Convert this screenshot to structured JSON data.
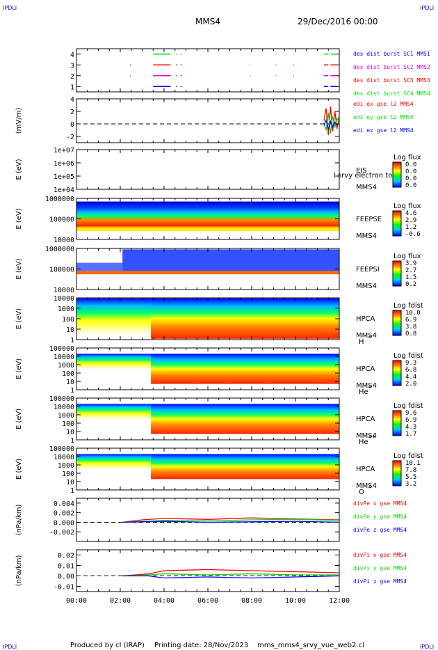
{
  "header": {
    "corner_label": "IPDLI",
    "spacecraft": "MMS4",
    "date": "29/Dec/2016 00:00"
  },
  "footer": {
    "produced_by": "Produced by cl (IRAP)",
    "printing_date": "Printing date: 28/Nov/2023",
    "filename": "mms_mms4_srvy_vue_web2.cl"
  },
  "colors": {
    "red": "#ff0000",
    "green": "#00dd00",
    "blue": "#0000ff",
    "magenta": "#dd00dd",
    "black": "#000000"
  },
  "chart_data": [
    {
      "type": "line",
      "panel": "burst",
      "ylabel": "",
      "ylim": [
        0.5,
        4.5
      ],
      "yticks": [
        "1",
        "2",
        "3",
        "4"
      ],
      "series": [
        {
          "name": "des dist burst SC1 MMS1",
          "color": "#0000ff",
          "y": 1,
          "intervals": [
            [
              3.5,
              4.3
            ],
            [
              4.55,
              4.6
            ],
            [
              4.75,
              4.8
            ],
            [
              11.3,
              11.5
            ],
            [
              11.6,
              11.9
            ]
          ]
        },
        {
          "name": "des dist burst SC2 MMS2",
          "color": "#dd00dd",
          "y": 2,
          "intervals": [
            [
              2.45,
              2.48
            ],
            [
              3.5,
              4.3
            ],
            [
              4.55,
              4.6
            ],
            [
              4.75,
              4.8
            ],
            [
              7.9,
              7.93
            ],
            [
              9.1,
              9.13
            ],
            [
              9.9,
              9.93
            ],
            [
              11.3,
              11.5
            ],
            [
              11.6,
              11.9
            ]
          ]
        },
        {
          "name": "des dist burst SC3 MMS3",
          "color": "#ff0000",
          "y": 3,
          "intervals": [
            [
              2.45,
              2.48
            ],
            [
              3.5,
              4.3
            ],
            [
              4.55,
              4.6
            ],
            [
              4.75,
              4.8
            ],
            [
              7.9,
              7.93
            ],
            [
              9.1,
              9.13
            ],
            [
              9.9,
              9.93
            ],
            [
              11.3,
              11.5
            ],
            [
              11.6,
              11.9
            ]
          ]
        },
        {
          "name": "des dist burst SC4 MMS4",
          "color": "#00dd00",
          "y": 4,
          "intervals": [
            [
              3.5,
              4.3
            ],
            [
              4.55,
              4.6
            ],
            [
              4.75,
              4.8
            ],
            [
              7.9,
              7.93
            ],
            [
              9.1,
              9.13
            ],
            [
              9.9,
              9.93
            ],
            [
              11.3,
              11.5
            ],
            [
              11.6,
              11.9
            ]
          ]
        }
      ]
    },
    {
      "type": "line",
      "panel": "edi",
      "ylabel": "(mV/m)",
      "ylim": [
        -3,
        4
      ],
      "yticks": [
        "-2",
        "0",
        "2",
        "4"
      ],
      "series": [
        {
          "name": "edi ex gse l2 MMS4",
          "color": "#ff0000",
          "x": [
            11.3,
            11.4,
            11.5,
            11.6,
            11.7,
            11.8,
            11.9,
            12.0
          ],
          "y": [
            0.5,
            2.5,
            -1.8,
            2.8,
            -1.2,
            2.0,
            -0.8,
            1.5
          ]
        },
        {
          "name": "edi ey gse l2 MMS4",
          "color": "#00dd00",
          "x": [
            11.3,
            11.4,
            11.5,
            11.6,
            11.7,
            11.8,
            11.9,
            12.0
          ],
          "y": [
            0.2,
            -1.0,
            1.8,
            -1.5,
            1.2,
            -0.6,
            0.9,
            0.1
          ]
        },
        {
          "name": "edi ez gse l2 MMS4",
          "color": "#0000ff",
          "x": [
            11.3,
            11.4,
            11.5,
            11.6,
            11.7,
            11.8,
            11.9,
            12.0
          ],
          "y": [
            -0.3,
            0.6,
            -0.9,
            0.4,
            -0.5,
            0.3,
            -0.2,
            0.1
          ]
        }
      ]
    },
    {
      "type": "heatmap",
      "panel": "eis",
      "ylabel": "E (eV)",
      "yscale": "log",
      "ylim": [
        10000,
        10000000
      ],
      "yticks": [
        "1e+04",
        "1e+05",
        "1e+06",
        "1e+07"
      ],
      "instrument": "EIS",
      "spacecraft": "MMS4",
      "overlay_text": "l srvy electron to",
      "colorbar_title": "Log flux",
      "colorbar_ticks": [
        "0.0",
        "0.0",
        "0.0",
        "0.0"
      ]
    },
    {
      "type": "heatmap",
      "panel": "feepse",
      "ylabel": "E (eV)",
      "yscale": "log",
      "ylim": [
        10000,
        1000000
      ],
      "yticks": [
        "10000",
        "100000",
        "1000000"
      ],
      "instrument": "FEEPSE",
      "spacecraft": "MMS4",
      "colorbar_title": "Log flux",
      "colorbar_ticks": [
        "4.6",
        "2.9",
        "1.2",
        "-0.6"
      ]
    },
    {
      "type": "heatmap",
      "panel": "feepsi",
      "ylabel": "E (eV)",
      "yscale": "log",
      "ylim": [
        10000,
        1000000
      ],
      "yticks": [
        "10000",
        "100000",
        "1000000"
      ],
      "instrument": "FEEPSI",
      "spacecraft": "MMS4",
      "colorbar_title": "Log flux",
      "colorbar_ticks": [
        "3.9",
        "2.7",
        "1.5",
        "0.2"
      ]
    },
    {
      "type": "heatmap",
      "panel": "hpca_h",
      "ylabel": "E (eV)",
      "yscale": "log",
      "ylim": [
        1,
        10000
      ],
      "yticks": [
        "1",
        "10",
        "100",
        "1000",
        "10000"
      ],
      "instrument": "HPCA",
      "spacecraft": "MMS4",
      "species": "H",
      "species_charge": "+",
      "colorbar_title": "Log fdist",
      "colorbar_ticks": [
        "10.0",
        "6.9",
        "3.8",
        "0.8"
      ]
    },
    {
      "type": "heatmap",
      "panel": "hpca_he",
      "ylabel": "E (eV)",
      "yscale": "log",
      "ylim": [
        1,
        100000
      ],
      "yticks": [
        "1",
        "10",
        "100",
        "1000",
        "10000",
        "100000"
      ],
      "instrument": "HPCA",
      "spacecraft": "MMS4",
      "species": "He",
      "species_charge": "+",
      "colorbar_title": "Log fdist",
      "colorbar_ticks": [
        "9.3",
        "6.8",
        "4.4",
        "2.0"
      ]
    },
    {
      "type": "heatmap",
      "panel": "hpca_hepp",
      "ylabel": "E (eV)",
      "yscale": "log",
      "ylim": [
        1,
        100000
      ],
      "yticks": [
        "1",
        "10",
        "100",
        "1000",
        "10000",
        "100000"
      ],
      "instrument": "HPCA",
      "spacecraft": "MMS4",
      "species": "He",
      "species_charge": "++",
      "colorbar_title": "Log fdist",
      "colorbar_ticks": [
        "9.6",
        "6.9",
        "4.3",
        "1.7"
      ]
    },
    {
      "type": "heatmap",
      "panel": "hpca_o",
      "ylabel": "E (eV)",
      "yscale": "log",
      "ylim": [
        1,
        100000
      ],
      "yticks": [
        "1",
        "10",
        "100",
        "1000",
        "10000",
        "100000"
      ],
      "instrument": "HPCA",
      "spacecraft": "MMS4",
      "species": "O",
      "species_charge": "+",
      "colorbar_title": "Log fdist",
      "colorbar_ticks": [
        "10.1",
        "7.8",
        "5.5",
        "3.2"
      ]
    },
    {
      "type": "line",
      "panel": "divpe",
      "ylabel": "(nPa/km)",
      "ylim": [
        -0.004,
        0.005
      ],
      "yticks": [
        "-0.002",
        "0.000",
        "0.002",
        "0.004"
      ],
      "series": [
        {
          "name": "divPe x gse MMS4",
          "color": "#ff0000",
          "x": [
            2.1,
            3.0,
            4.0,
            6.0,
            8.0,
            10.0,
            12.0
          ],
          "y": [
            0.0,
            0.0005,
            0.0008,
            0.0006,
            0.0009,
            0.0007,
            0.0005
          ]
        },
        {
          "name": "divPe y gse MMS4",
          "color": "#00dd00",
          "x": [
            2.1,
            3.0,
            4.0,
            6.0,
            8.0,
            10.0,
            12.0
          ],
          "y": [
            0.0,
            0.0002,
            0.0004,
            0.0003,
            0.0005,
            0.0006,
            0.0004
          ]
        },
        {
          "name": "divPe z gse MMS4",
          "color": "#0000ff",
          "x": [
            2.1,
            3.0,
            4.0,
            6.0,
            8.0,
            10.0,
            12.0
          ],
          "y": [
            0.0,
            0.0001,
            0.0002,
            0.0,
            0.0001,
            0.0002,
            0.0
          ]
        }
      ]
    },
    {
      "type": "line",
      "panel": "divpi",
      "ylabel": "(nPa/km)",
      "ylim": [
        -0.015,
        0.025
      ],
      "yticks": [
        "-0.01",
        "0.00",
        "0.01",
        "0.02"
      ],
      "xticks": [
        "00:00",
        "02:00",
        "04:00",
        "06:00",
        "08:00",
        "10:00",
        "12:00"
      ],
      "series": [
        {
          "name": "divPi x gse MMS4",
          "color": "#ff0000",
          "x": [
            2.1,
            3.3,
            4.0,
            6.0,
            8.0,
            10.0,
            12.0
          ],
          "y": [
            0.0,
            0.002,
            0.005,
            0.006,
            0.005,
            0.004,
            0.003
          ]
        },
        {
          "name": "divPi y gse MMS4",
          "color": "#00dd00",
          "x": [
            2.1,
            3.3,
            4.0,
            6.0,
            8.0,
            10.0,
            12.0
          ],
          "y": [
            0.0,
            0.001,
            0.002,
            0.001,
            0.002,
            0.001,
            0.001
          ]
        },
        {
          "name": "divPi z gse MMS4",
          "color": "#0000ff",
          "x": [
            2.1,
            3.3,
            4.0,
            6.0,
            8.0,
            10.0,
            12.0
          ],
          "y": [
            0.0,
            0.0,
            -0.002,
            -0.001,
            -0.002,
            -0.001,
            0.0
          ]
        }
      ]
    }
  ]
}
